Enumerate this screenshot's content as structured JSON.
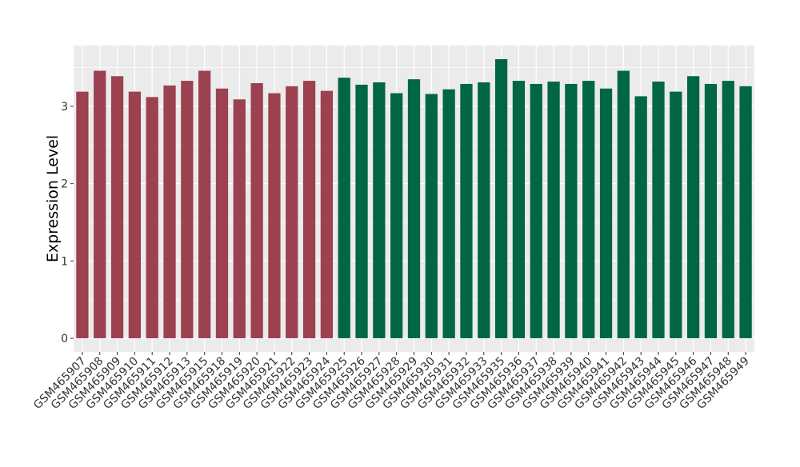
{
  "chart_data": {
    "type": "bar",
    "title": "",
    "xlabel": "",
    "ylabel": "Expression Level",
    "ylim": [
      -0.176,
      3.786
    ],
    "yticks": [
      0,
      1,
      2,
      3
    ],
    "grid": true,
    "categories": [
      "GSM465907",
      "GSM465908",
      "GSM465909",
      "GSM465910",
      "GSM465911",
      "GSM465912",
      "GSM465913",
      "GSM465915",
      "GSM465918",
      "GSM465919",
      "GSM465920",
      "GSM465921",
      "GSM465922",
      "GSM465923",
      "GSM465924",
      "GSM465925",
      "GSM465926",
      "GSM465927",
      "GSM465928",
      "GSM465929",
      "GSM465930",
      "GSM465931",
      "GSM465932",
      "GSM465933",
      "GSM465935",
      "GSM465936",
      "GSM465937",
      "GSM465938",
      "GSM465939",
      "GSM465940",
      "GSM465941",
      "GSM465942",
      "GSM465943",
      "GSM465944",
      "GSM465945",
      "GSM465946",
      "GSM465947",
      "GSM465948",
      "GSM465949"
    ],
    "values": [
      3.19,
      3.46,
      3.39,
      3.19,
      3.12,
      3.27,
      3.33,
      3.46,
      3.23,
      3.09,
      3.3,
      3.17,
      3.26,
      3.33,
      3.2,
      3.37,
      3.28,
      3.31,
      3.17,
      3.35,
      3.16,
      3.22,
      3.29,
      3.31,
      3.61,
      3.33,
      3.29,
      3.32,
      3.29,
      3.33,
      3.23,
      3.46,
      3.13,
      3.32,
      3.19,
      3.39,
      3.29,
      3.33,
      3.26
    ],
    "group_of_bar": [
      0,
      0,
      0,
      0,
      0,
      0,
      0,
      0,
      0,
      0,
      0,
      0,
      0,
      0,
      0,
      1,
      1,
      1,
      1,
      1,
      1,
      1,
      1,
      1,
      1,
      1,
      1,
      1,
      1,
      1,
      1,
      1,
      1,
      1,
      1,
      1,
      1,
      1,
      1
    ],
    "colors": [
      "#9b4150",
      "#006644"
    ],
    "panel_color": "#ebebeb",
    "grid_color": "#ffffff"
  }
}
